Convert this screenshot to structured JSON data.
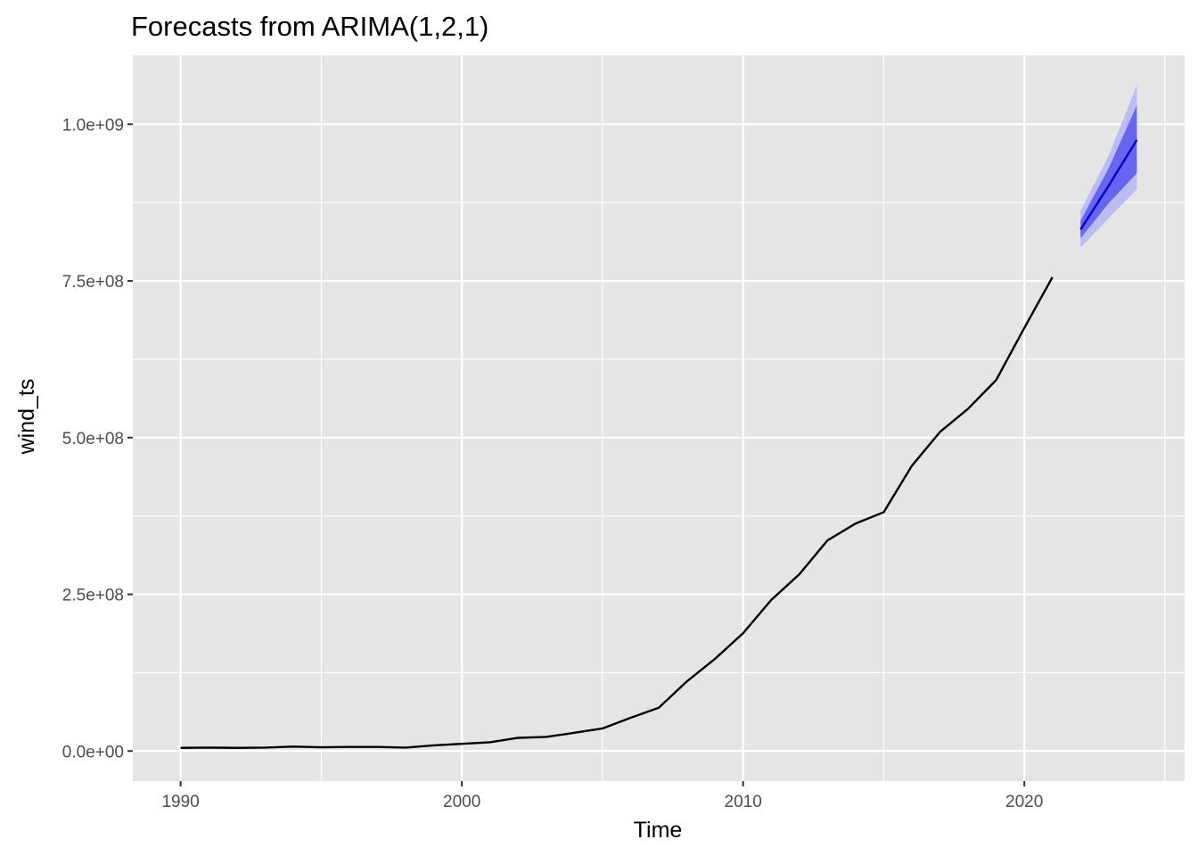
{
  "chart_data": {
    "type": "line",
    "title": "Forecasts from ARIMA(1,2,1)",
    "xlabel": "Time",
    "ylabel": "wind_ts",
    "xlim": [
      1988.3,
      2025.7
    ],
    "ylim": [
      -48000000,
      1110000000
    ],
    "x_ticks": [
      1990,
      2000,
      2010,
      2020
    ],
    "x_tick_labels": [
      "1990",
      "2000",
      "2010",
      "2020"
    ],
    "y_ticks": [
      0,
      250000000,
      500000000,
      750000000,
      1000000000
    ],
    "y_tick_labels": [
      "0.0e+00",
      "2.5e+08",
      "5.0e+08",
      "7.5e+08",
      "1.0e+09"
    ],
    "grid": true,
    "legend": "none",
    "colors": {
      "panel_background": "#e5e5e5",
      "grid": "#ffffff",
      "observed_line": "#000000",
      "forecast_line": "#0000cc",
      "interval_80": "#6565f0",
      "interval_95": "#bcbcf4"
    },
    "series": [
      {
        "x": [
          1990,
          1991,
          1992,
          1993,
          1994,
          1995,
          1996,
          1997,
          1998,
          1999,
          2000,
          2001,
          2002,
          2003,
          2004,
          2005,
          2006,
          2007,
          2008,
          2009,
          2010,
          2011,
          2012,
          2013,
          2014,
          2015,
          2016,
          2017,
          2018,
          2019,
          2020,
          2021
        ],
        "values": [
          5000000,
          5500000,
          5000000,
          5500000,
          7000000,
          6000000,
          6500000,
          6500000,
          5500000,
          9000000,
          11500000,
          14000000,
          21000000,
          22500000,
          29000000,
          36000000,
          53000000,
          69000000,
          111000000,
          147000000,
          188000000,
          241000000,
          282000000,
          336000000,
          363000000,
          381000000,
          455000000,
          509000000,
          546000000,
          592000000,
          675000000,
          756000000
        ]
      },
      {
        "x": [
          2022,
          2023,
          2024
        ],
        "values": [
          832000000,
          902000000,
          975000000
        ],
        "lo80": [
          818000000,
          874000000,
          922000000
        ],
        "hi80": [
          846000000,
          930000000,
          1030000000
        ],
        "lo95": [
          803000000,
          850000000,
          896000000
        ],
        "hi95": [
          862000000,
          950000000,
          1062000000
        ]
      }
    ]
  }
}
